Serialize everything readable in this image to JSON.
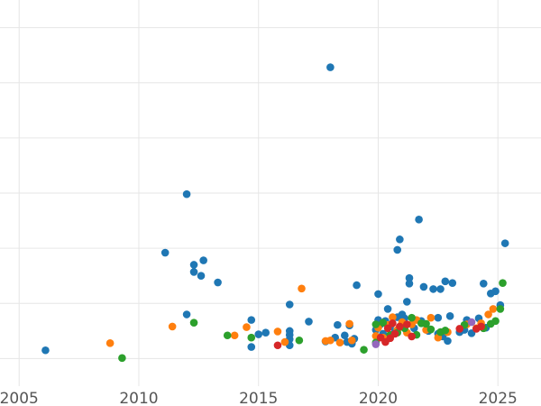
{
  "chart_data": {
    "type": "scatter",
    "title": "",
    "xlabel": "",
    "ylabel": "",
    "xlim": [
      2004.2,
      2026.8
    ],
    "ylim": [
      -0.5,
      6.5
    ],
    "grid": true,
    "x_ticks": [
      2005,
      2010,
      2015,
      2020,
      2025
    ],
    "x_tick_labels": [
      "2005",
      "2010",
      "2015",
      "2020",
      "2025"
    ],
    "y_grid": [
      0,
      1,
      2,
      3,
      4,
      5,
      6
    ],
    "colors": {
      "blue": "#1f77b4",
      "orange": "#ff7f0e",
      "green": "#2ca02c",
      "red": "#d62728",
      "purple": "#9467bd"
    },
    "series": [
      {
        "color": "blue",
        "points": [
          [
            2006.1,
            0.15
          ],
          [
            2011.1,
            1.92
          ],
          [
            2012.0,
            2.98
          ],
          [
            2012.0,
            0.8
          ],
          [
            2012.3,
            1.7
          ],
          [
            2012.3,
            1.57
          ],
          [
            2012.6,
            1.5
          ],
          [
            2012.7,
            1.78
          ],
          [
            2013.3,
            1.38
          ],
          [
            2014.7,
            0.7
          ],
          [
            2014.7,
            0.21
          ],
          [
            2015.0,
            0.44
          ],
          [
            2015.3,
            0.47
          ],
          [
            2016.3,
            0.98
          ],
          [
            2016.3,
            0.5
          ],
          [
            2016.3,
            0.43
          ],
          [
            2016.3,
            0.35
          ],
          [
            2016.3,
            0.24
          ],
          [
            2017.1,
            0.67
          ],
          [
            2017.8,
            0.31
          ],
          [
            2018.0,
            5.28
          ],
          [
            2018.2,
            0.38
          ],
          [
            2018.3,
            0.61
          ],
          [
            2018.6,
            0.42
          ],
          [
            2018.7,
            0.3
          ],
          [
            2018.8,
            0.6
          ],
          [
            2018.9,
            0.27
          ],
          [
            2019.0,
            0.36
          ],
          [
            2019.1,
            1.33
          ],
          [
            2019.9,
            0.52
          ],
          [
            2020.0,
            0.7
          ],
          [
            2020.0,
            1.17
          ],
          [
            2020.1,
            0.62
          ],
          [
            2020.2,
            0.45
          ],
          [
            2020.3,
            0.68
          ],
          [
            2020.4,
            0.9
          ],
          [
            2020.5,
            0.58
          ],
          [
            2020.7,
            0.48
          ],
          [
            2020.8,
            0.75
          ],
          [
            2020.8,
            1.97
          ],
          [
            2020.9,
            2.16
          ],
          [
            2021.0,
            0.8
          ],
          [
            2021.0,
            0.63
          ],
          [
            2021.1,
            0.73
          ],
          [
            2021.2,
            1.03
          ],
          [
            2021.3,
            1.46
          ],
          [
            2021.3,
            1.36
          ],
          [
            2021.5,
            0.55
          ],
          [
            2021.7,
            2.52
          ],
          [
            2021.8,
            0.68
          ],
          [
            2021.9,
            1.3
          ],
          [
            2022.1,
            0.5
          ],
          [
            2022.3,
            1.26
          ],
          [
            2022.5,
            0.45
          ],
          [
            2022.5,
            0.74
          ],
          [
            2022.6,
            1.26
          ],
          [
            2022.7,
            0.4
          ],
          [
            2022.8,
            1.4
          ],
          [
            2022.9,
            0.32
          ],
          [
            2023.0,
            0.77
          ],
          [
            2023.1,
            1.37
          ],
          [
            2023.4,
            0.48
          ],
          [
            2023.6,
            0.52
          ],
          [
            2023.7,
            0.7
          ],
          [
            2023.9,
            0.46
          ],
          [
            2024.2,
            0.73
          ],
          [
            2024.4,
            1.36
          ],
          [
            2024.5,
            0.56
          ],
          [
            2024.7,
            1.18
          ],
          [
            2024.9,
            1.22
          ],
          [
            2025.1,
            0.97
          ],
          [
            2025.3,
            2.09
          ]
        ]
      },
      {
        "color": "orange",
        "points": [
          [
            2008.8,
            0.28
          ],
          [
            2011.4,
            0.58
          ],
          [
            2014.0,
            0.42
          ],
          [
            2014.5,
            0.57
          ],
          [
            2015.8,
            0.49
          ],
          [
            2016.1,
            0.3
          ],
          [
            2016.8,
            1.27
          ],
          [
            2017.8,
            0.32
          ],
          [
            2018.0,
            0.33
          ],
          [
            2018.4,
            0.29
          ],
          [
            2018.8,
            0.63
          ],
          [
            2018.9,
            0.33
          ],
          [
            2019.9,
            0.41
          ],
          [
            2020.0,
            0.56
          ],
          [
            2020.2,
            0.38
          ],
          [
            2020.4,
            0.61
          ],
          [
            2020.6,
            0.75
          ],
          [
            2020.8,
            0.52
          ],
          [
            2021.0,
            0.66
          ],
          [
            2021.2,
            0.47
          ],
          [
            2021.4,
            0.62
          ],
          [
            2021.6,
            0.7
          ],
          [
            2022.0,
            0.52
          ],
          [
            2022.2,
            0.74
          ],
          [
            2022.5,
            0.38
          ],
          [
            2022.9,
            0.48
          ],
          [
            2023.7,
            0.62
          ],
          [
            2024.1,
            0.55
          ],
          [
            2024.3,
            0.64
          ],
          [
            2024.6,
            0.8
          ],
          [
            2024.8,
            0.9
          ]
        ]
      },
      {
        "color": "green",
        "points": [
          [
            2009.3,
            0.01
          ],
          [
            2012.3,
            0.65
          ],
          [
            2013.7,
            0.42
          ],
          [
            2014.7,
            0.38
          ],
          [
            2016.7,
            0.33
          ],
          [
            2019.4,
            0.16
          ],
          [
            2019.9,
            0.29
          ],
          [
            2019.9,
            0.62
          ],
          [
            2020.2,
            0.65
          ],
          [
            2020.5,
            0.43
          ],
          [
            2020.8,
            0.47
          ],
          [
            2021.1,
            0.55
          ],
          [
            2021.4,
            0.74
          ],
          [
            2021.6,
            0.43
          ],
          [
            2021.8,
            0.64
          ],
          [
            2022.0,
            0.63
          ],
          [
            2022.2,
            0.53
          ],
          [
            2022.6,
            0.48
          ],
          [
            2022.8,
            0.51
          ],
          [
            2023.6,
            0.61
          ],
          [
            2024.4,
            0.55
          ],
          [
            2024.7,
            0.63
          ],
          [
            2024.9,
            0.68
          ],
          [
            2025.1,
            0.9
          ],
          [
            2025.2,
            1.37
          ]
        ]
      },
      {
        "color": "red",
        "points": [
          [
            2015.8,
            0.24
          ],
          [
            2020.1,
            0.38
          ],
          [
            2020.3,
            0.3
          ],
          [
            2020.4,
            0.55
          ],
          [
            2020.5,
            0.37
          ],
          [
            2020.6,
            0.64
          ],
          [
            2020.7,
            0.45
          ],
          [
            2020.9,
            0.58
          ],
          [
            2021.2,
            0.62
          ],
          [
            2021.4,
            0.4
          ],
          [
            2023.4,
            0.54
          ],
          [
            2024.1,
            0.54
          ],
          [
            2024.3,
            0.58
          ]
        ]
      },
      {
        "color": "purple",
        "points": [
          [
            2019.9,
            0.26
          ],
          [
            2023.9,
            0.66
          ]
        ]
      }
    ]
  }
}
